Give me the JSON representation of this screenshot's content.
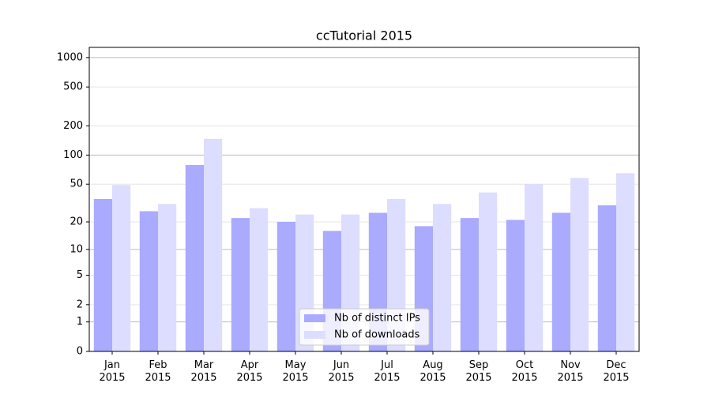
{
  "chart_data": {
    "type": "bar",
    "title": "ccTutorial 2015",
    "categories": [
      "Jan\n2015",
      "Feb\n2015",
      "Mar\n2015",
      "Apr\n2015",
      "May\n2015",
      "Jun\n2015",
      "Jul\n2015",
      "Aug\n2015",
      "Sep\n2015",
      "Oct\n2015",
      "Nov\n2015",
      "Dec\n2015"
    ],
    "series": [
      {
        "name": "Nb of distinct IPs",
        "color": "#aaaaff",
        "values": [
          35,
          26,
          79,
          22,
          20,
          16,
          25,
          18,
          22,
          21,
          25,
          30
        ]
      },
      {
        "name": "Nb of downloads",
        "color": "#ddddff",
        "values": [
          49,
          31,
          147,
          28,
          24,
          24,
          35,
          31,
          41,
          50,
          58,
          65
        ]
      }
    ],
    "yscale": "log1p",
    "ylim": [
      0,
      1270
    ],
    "yticks": [
      0,
      1,
      2,
      5,
      10,
      20,
      50,
      100,
      200,
      500,
      1000
    ],
    "grid": true,
    "legend": "lower center"
  }
}
